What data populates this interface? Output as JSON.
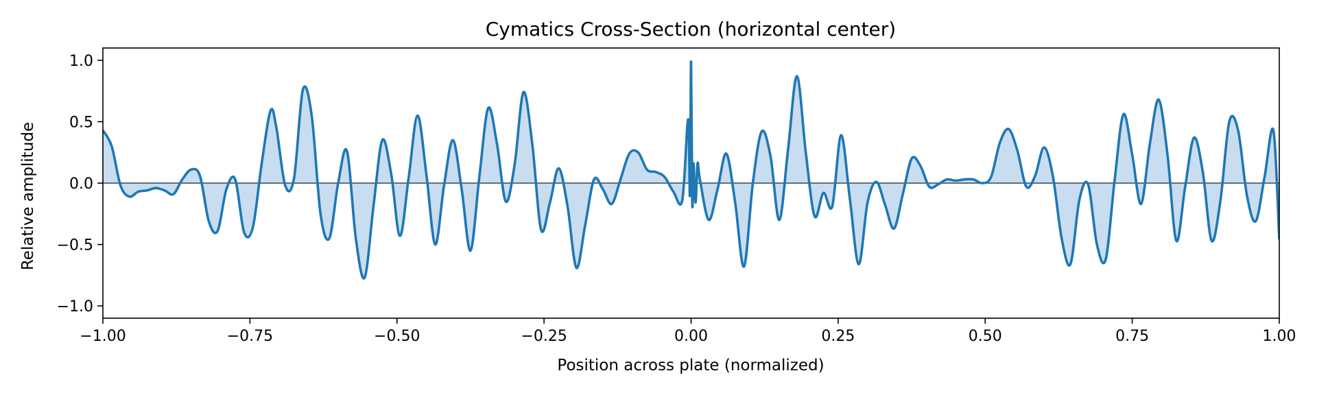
{
  "chart_data": {
    "type": "area",
    "title": "Cymatics Cross-Section (horizontal center)",
    "xlabel": "Position across plate (normalized)",
    "ylabel": "Relative amplitude",
    "xlim": [
      -1.0,
      1.0
    ],
    "ylim": [
      -1.1,
      1.1
    ],
    "xticks": [
      "−1.00",
      "−0.75",
      "−0.50",
      "−0.25",
      "0.00",
      "0.25",
      "0.50",
      "0.75",
      "1.00"
    ],
    "xtick_values": [
      -1.0,
      -0.75,
      -0.5,
      -0.25,
      0.0,
      0.25,
      0.5,
      0.75,
      1.0
    ],
    "yticks": [
      "−1.0",
      "−0.5",
      "0.0",
      "0.5",
      "1.0"
    ],
    "ytick_values": [
      -1.0,
      -0.5,
      0.0,
      0.5,
      1.0
    ],
    "grid": false,
    "baseline": 0.0,
    "colors": {
      "line": "#1f77b4",
      "fill": "#c6dbef",
      "baseline": "#5f6f7d"
    },
    "series": [
      {
        "x": [
          -1.0,
          -0.985,
          -0.97,
          -0.955,
          -0.94,
          -0.925,
          -0.91,
          -0.895,
          -0.88,
          -0.865,
          -0.85,
          -0.835,
          -0.82,
          -0.805,
          -0.79,
          -0.775,
          -0.76,
          -0.745,
          -0.73,
          -0.715,
          -0.705,
          -0.69,
          -0.675,
          -0.66,
          -0.645,
          -0.63,
          -0.615,
          -0.6,
          -0.585,
          -0.57,
          -0.555,
          -0.54,
          -0.525,
          -0.51,
          -0.495,
          -0.48,
          -0.465,
          -0.45,
          -0.435,
          -0.42,
          -0.405,
          -0.39,
          -0.375,
          -0.36,
          -0.345,
          -0.33,
          -0.315,
          -0.3,
          -0.285,
          -0.27,
          -0.255,
          -0.24,
          -0.225,
          -0.21,
          -0.195,
          -0.18,
          -0.165,
          -0.15,
          -0.135,
          -0.12,
          -0.105,
          -0.09,
          -0.075,
          -0.06,
          -0.045,
          -0.03,
          -0.015,
          -0.005,
          -0.002,
          0.0,
          0.002,
          0.004,
          0.006,
          0.008,
          0.011,
          0.015,
          0.03,
          0.045,
          0.06,
          0.075,
          0.09,
          0.105,
          0.12,
          0.135,
          0.15,
          0.165,
          0.18,
          0.195,
          0.21,
          0.225,
          0.24,
          0.255,
          0.27,
          0.285,
          0.3,
          0.315,
          0.33,
          0.345,
          0.36,
          0.375,
          0.39,
          0.405,
          0.42,
          0.435,
          0.45,
          0.465,
          0.48,
          0.495,
          0.51,
          0.525,
          0.54,
          0.555,
          0.57,
          0.585,
          0.6,
          0.615,
          0.63,
          0.645,
          0.66,
          0.675,
          0.69,
          0.705,
          0.72,
          0.735,
          0.75,
          0.765,
          0.78,
          0.795,
          0.81,
          0.825,
          0.84,
          0.855,
          0.87,
          0.885,
          0.9,
          0.915,
          0.93,
          0.945,
          0.96,
          0.975,
          0.99,
          1.0
        ],
        "y": [
          0.43,
          0.3,
          -0.02,
          -0.11,
          -0.07,
          -0.06,
          -0.04,
          -0.06,
          -0.09,
          0.03,
          0.11,
          0.06,
          -0.31,
          -0.39,
          -0.05,
          0.03,
          -0.4,
          -0.36,
          0.16,
          0.59,
          0.45,
          -0.02,
          0.04,
          0.76,
          0.55,
          -0.25,
          -0.45,
          0.0,
          0.26,
          -0.45,
          -0.77,
          -0.19,
          0.35,
          0.08,
          -0.43,
          0.05,
          0.55,
          0.07,
          -0.5,
          -0.02,
          0.35,
          -0.05,
          -0.55,
          0.05,
          0.61,
          0.32,
          -0.15,
          0.15,
          0.74,
          0.32,
          -0.38,
          -0.16,
          0.12,
          -0.19,
          -0.69,
          -0.34,
          0.03,
          -0.05,
          -0.17,
          0.03,
          0.24,
          0.25,
          0.11,
          0.09,
          0.05,
          -0.07,
          -0.14,
          0.52,
          -0.1,
          0.99,
          -0.17,
          0.16,
          -0.05,
          -0.15,
          0.16,
          0.03,
          -0.3,
          -0.05,
          0.24,
          -0.16,
          -0.68,
          0.0,
          0.42,
          0.22,
          -0.3,
          0.28,
          0.87,
          0.25,
          -0.27,
          -0.08,
          -0.19,
          0.39,
          -0.13,
          -0.66,
          -0.16,
          0.01,
          -0.18,
          -0.37,
          -0.09,
          0.2,
          0.14,
          -0.03,
          -0.01,
          0.03,
          0.02,
          0.03,
          0.03,
          0.0,
          0.05,
          0.33,
          0.44,
          0.26,
          -0.03,
          0.06,
          0.29,
          0.06,
          -0.45,
          -0.66,
          -0.14,
          -0.01,
          -0.5,
          -0.62,
          0.02,
          0.56,
          0.23,
          -0.17,
          0.32,
          0.68,
          0.23,
          -0.47,
          -0.03,
          0.37,
          0.09,
          -0.47,
          -0.14,
          0.5,
          0.43,
          -0.1,
          -0.31,
          0.05,
          0.43,
          -0.46
        ]
      }
    ]
  }
}
